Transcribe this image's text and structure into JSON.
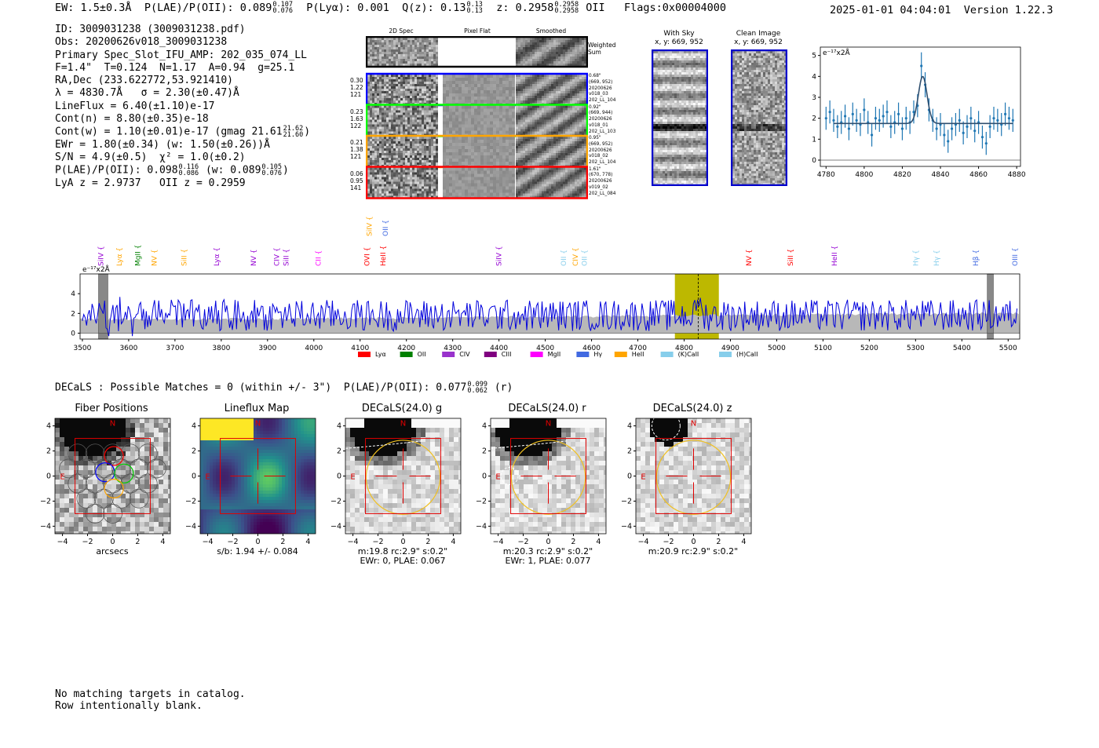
{
  "header": {
    "ew": "EW: 1.5±0.3Å",
    "plae_label": "P(LAE)/P(OII): 0.089",
    "plae_sup": "0.107",
    "plae_sub": "0.076",
    "plya": "P(Lyα): 0.001",
    "qz_label": "Q(z): 0.13",
    "qz_sup": "0.13",
    "qz_sub": "0.13",
    "z_label": "z: 0.2958",
    "z_sup": "0.2958",
    "z_sub": "0.2958",
    "z_line": "OII",
    "flags": "Flags:0x00004000",
    "datetime": "2025-01-01 04:04:01",
    "version": "Version 1.22.3"
  },
  "info": {
    "id": "ID: 3009031238 (3009031238.pdf)",
    "obs": "Obs: 20200626v018_3009031238",
    "primary": "Primary Spec_Slot_IFU_AMP: 202_035_074_LL",
    "fparams": "F=1.4\"  T=0.124  N=1.17  A=0.94  g=25.1",
    "radec": "RA,Dec (233.622772,53.921410)",
    "lambda": "λ = 4830.7Å   σ = 2.30(±0.47)Å",
    "lineflux": "LineFlux = 6.40(±1.10)e-17",
    "contn": "Cont(n) = 8.80(±0.35)e-18",
    "contw_label": "Cont(w) = 1.10(±0.01)e-17 (gmag 21.61",
    "contw_sup": "21.62",
    "contw_sub": "21.60",
    "contw_close": ")",
    "ewr": "EWr = 1.80(±0.34) (w: 1.50(±0.26))Å",
    "sn": "S/N = 4.9(±0.5)  χ² = 1.0(±0.2)",
    "plae2_label": "P(LAE)/P(OII): 0.098",
    "plae2_sup": "0.116",
    "plae2_sub": "0.086",
    "plae2_w": "(w: 0.089",
    "plae2_wsup": "0.105",
    "plae2_wsub": "0.076",
    "plae2_close": ")",
    "lyaz": "LyA z = 2.9737   OII z = 0.2959"
  },
  "cutouts": {
    "col_labels": [
      "2D Spec",
      "Pixel Flat",
      "Smoothed"
    ],
    "weighted_sum": "Weighted Sum",
    "rows": [
      {
        "left": [
          "0.30",
          "1.22",
          "121"
        ],
        "right": [
          "0.68\"",
          "(669, 952)",
          "20200626",
          "v018_03",
          "202_LL_104"
        ],
        "color": "#0000ff"
      },
      {
        "left": [
          "0.23",
          "1.63",
          "122"
        ],
        "right": [
          "0.92\"",
          "(669, 944)",
          "20200626",
          "v018_01",
          "202_LL_103"
        ],
        "color": "#00ff00"
      },
      {
        "left": [
          "0.21",
          "1.38",
          "121"
        ],
        "right": [
          "0.95\"",
          "(669, 952)",
          "20200626",
          "v018_02",
          "202_LL_104"
        ],
        "color": "#ffa500"
      },
      {
        "left": [
          "0.06",
          "0.95",
          "141"
        ],
        "right": [
          "1.61\"",
          "(670, 778)",
          "20200626",
          "v019_02",
          "202_LL_084"
        ],
        "color": "#ff0000"
      }
    ]
  },
  "sky": {
    "with_sky_title": "With Sky",
    "with_sky_xy": "x, y: 669, 952",
    "clean_title": "Clean Image",
    "clean_xy": "x, y: 669, 952"
  },
  "chart_data": [
    {
      "type": "scatter",
      "name": "line-fit",
      "ylabel": "e⁻¹⁷x2Å",
      "xlim": [
        4777,
        4882
      ],
      "ylim": [
        -0.3,
        5.4
      ],
      "xticks": [
        4780,
        4800,
        4820,
        4840,
        4860,
        4880
      ],
      "yticks": [
        0,
        1,
        2,
        3,
        4,
        5
      ],
      "x": [
        4780,
        4782,
        4784,
        4786,
        4788,
        4790,
        4792,
        4794,
        4796,
        4798,
        4800,
        4802,
        4804,
        4806,
        4808,
        4810,
        4812,
        4814,
        4816,
        4818,
        4820,
        4822,
        4824,
        4826,
        4828,
        4830,
        4832,
        4834,
        4836,
        4838,
        4840,
        4842,
        4844,
        4846,
        4848,
        4850,
        4852,
        4854,
        4856,
        4858,
        4860,
        4862,
        4864,
        4866,
        4868,
        4870,
        4872,
        4874,
        4876,
        4878
      ],
      "y": [
        2.0,
        2.3,
        1.9,
        1.6,
        1.8,
        2.1,
        1.5,
        2.2,
        1.9,
        1.7,
        2.4,
        1.8,
        1.2,
        2.0,
        1.9,
        2.1,
        2.3,
        1.6,
        1.8,
        2.2,
        1.5,
        2.0,
        1.8,
        2.3,
        2.6,
        4.5,
        3.6,
        2.4,
        1.9,
        1.5,
        1.7,
        1.2,
        0.9,
        1.5,
        1.7,
        1.9,
        1.3,
        1.6,
        2.0,
        1.4,
        1.8,
        1.1,
        0.8,
        1.6,
        2.0,
        1.9,
        1.7,
        2.2,
        2.0,
        1.9
      ],
      "err": [
        0.55,
        0.55,
        0.55,
        0.55,
        0.55,
        0.55,
        0.55,
        0.55,
        0.55,
        0.55,
        0.55,
        0.55,
        0.55,
        0.55,
        0.55,
        0.55,
        0.55,
        0.55,
        0.55,
        0.55,
        0.55,
        0.55,
        0.55,
        0.55,
        0.55,
        0.65,
        0.6,
        0.55,
        0.55,
        0.55,
        0.55,
        0.55,
        0.55,
        0.55,
        0.55,
        0.55,
        0.55,
        0.55,
        0.55,
        0.55,
        0.55,
        0.55,
        0.55,
        0.55,
        0.55,
        0.55,
        0.55,
        0.55,
        0.55,
        0.55
      ],
      "fit": {
        "continuum": 1.75,
        "amplitude": 2.25,
        "center": 4830.7,
        "sigma": 2.3
      }
    },
    {
      "type": "line",
      "name": "full-spectrum",
      "ylabel": "e⁻¹⁷x2Å",
      "xlim": [
        3495,
        5525
      ],
      "ylim": [
        -0.6,
        6.0
      ],
      "xticks": [
        3500,
        3600,
        3700,
        3800,
        3900,
        4000,
        4100,
        4200,
        4300,
        4400,
        4500,
        4600,
        4700,
        4800,
        4900,
        5000,
        5100,
        5200,
        5300,
        5400,
        5500
      ],
      "yticks": [
        0,
        2,
        4
      ],
      "highlight": [
        4780,
        4875
      ],
      "line_center": 4830.7,
      "masked": [
        [
          3535,
          3555
        ],
        [
          5455,
          5468
        ]
      ],
      "error_level_approx": 1.7,
      "seed": 7,
      "line_markers": [
        {
          "label": "SiIV",
          "x": 3540,
          "color": "#9400d3",
          "row": 0
        },
        {
          "label": "Lyα",
          "x": 3580,
          "color": "#ffa500",
          "row": 0
        },
        {
          "label": "MgII",
          "x": 3620,
          "color": "#008000",
          "row": 0
        },
        {
          "label": "NV",
          "x": 3655,
          "color": "#ffa500",
          "row": 0
        },
        {
          "label": "SiII",
          "x": 3720,
          "color": "#ffa500",
          "row": 0
        },
        {
          "label": "Lyα",
          "x": 3790,
          "color": "#9400d3",
          "row": 0
        },
        {
          "label": "NV",
          "x": 3870,
          "color": "#9400d3",
          "row": 0
        },
        {
          "label": "CIV",
          "x": 3920,
          "color": "#9400d3",
          "row": 0
        },
        {
          "label": "SiII",
          "x": 3940,
          "color": "#9400d3",
          "row": 0
        },
        {
          "label": "CII",
          "x": 4010,
          "color": "#ff00ff",
          "row": 0
        },
        {
          "label": "OVI",
          "x": 4115,
          "color": "#ff0000",
          "row": 0
        },
        {
          "label": "SiIV",
          "x": 4120,
          "color": "#ffa500",
          "row": 1
        },
        {
          "label": "HeII",
          "x": 4150,
          "color": "#ff0000",
          "row": 0
        },
        {
          "label": "OII",
          "x": 4155,
          "color": "#4169e1",
          "row": 1
        },
        {
          "label": "SiIV",
          "x": 4400,
          "color": "#9400d3",
          "row": 0
        },
        {
          "label": "OII",
          "x": 4540,
          "color": "#87ceeb",
          "row": 0
        },
        {
          "label": "CIV",
          "x": 4565,
          "color": "#ffa500",
          "row": 0
        },
        {
          "label": "OII",
          "x": 4585,
          "color": "#87ceeb",
          "row": 0
        },
        {
          "label": "NV",
          "x": 4940,
          "color": "#ff0000",
          "row": 0
        },
        {
          "label": "SiII",
          "x": 5030,
          "color": "#ff0000",
          "row": 0
        },
        {
          "label": "HeII",
          "x": 5125,
          "color": "#9400d3",
          "row": 0
        },
        {
          "label": "Hγ",
          "x": 5300,
          "color": "#87ceeb",
          "row": 0
        },
        {
          "label": "Hγ",
          "x": 5345,
          "color": "#87ceeb",
          "row": 0
        },
        {
          "label": "Hβ",
          "x": 5430,
          "color": "#4169e1",
          "row": 0
        },
        {
          "label": "OIII",
          "x": 5515,
          "color": "#4169e1",
          "row": 0
        }
      ],
      "legend": [
        {
          "label": "Lyα",
          "color": "#ff0000"
        },
        {
          "label": "OII",
          "color": "#008000"
        },
        {
          "label": "CIV",
          "color": "#9932cc"
        },
        {
          "label": "CIII",
          "color": "#800080"
        },
        {
          "label": "MgII",
          "color": "#ff00ff"
        },
        {
          "label": "Hγ",
          "color": "#4169e1"
        },
        {
          "label": "HeII",
          "color": "#ffa500"
        },
        {
          "label": "(K)CaII",
          "color": "#87ceeb"
        },
        {
          "label": "(H)CaII",
          "color": "#87ceeb"
        }
      ]
    }
  ],
  "decals_line": {
    "label": "DECaLS : Possible Matches = 0 (within +/- 3\")  P(LAE)/P(OII): 0.077",
    "sup": "0.099",
    "sub": "0.062",
    "suffix": "(r)"
  },
  "cutout_panels": [
    {
      "title": "Fiber Positions",
      "caption": [
        "arcsecs"
      ],
      "kind": "fiber"
    },
    {
      "title": "Lineflux Map",
      "caption": [
        "s/b: 1.94 +/- 0.084"
      ],
      "kind": "flux"
    },
    {
      "title": "DECaLS(24.0) g",
      "caption": [
        "m:19.8 rc:2.9\"  s:0.2\"",
        "EWr: 0, PLAE: 0.067"
      ],
      "kind": "g"
    },
    {
      "title": "DECaLS(24.0) r",
      "caption": [
        "m:20.3 rc:2.9\"  s:0.2\"",
        "EWr: 1, PLAE: 0.077"
      ],
      "kind": "r"
    },
    {
      "title": "DECaLS(24.0) z",
      "caption": [
        "m:20.9 rc:2.9\"  s:0.2\""
      ],
      "kind": "z"
    }
  ],
  "cutout_axes": {
    "ticks": [
      -4,
      -2,
      0,
      2,
      4
    ],
    "north": "N",
    "east": "E"
  },
  "footer": {
    "line1": "No matching targets in catalog.",
    "line2": "Row intentionally blank."
  }
}
